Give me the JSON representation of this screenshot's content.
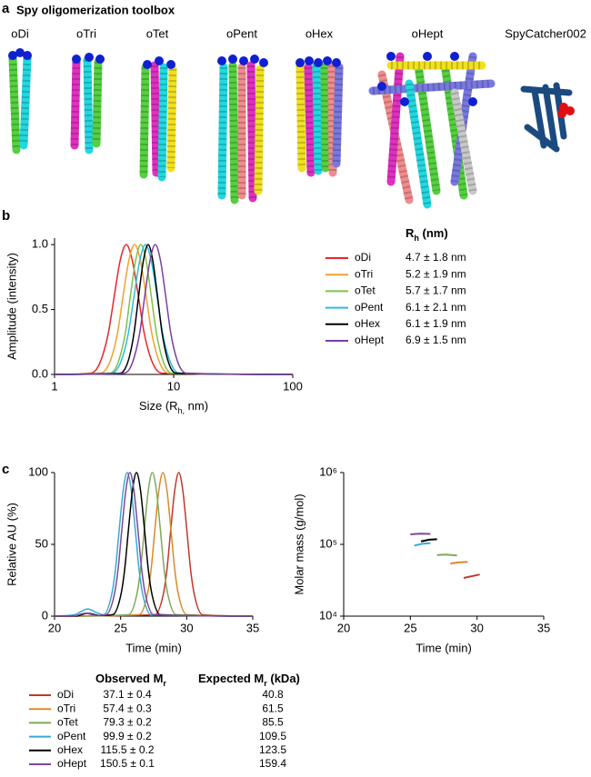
{
  "panel_labels": [
    "a",
    "b",
    "c"
  ],
  "toolbox": {
    "title": "Spy oligomerization toolbox",
    "names": [
      "oDi",
      "oTri",
      "oTet",
      "oPent",
      "oHex",
      "oHept",
      "SpyCatcher002"
    ]
  },
  "chart_data": [
    {
      "type": "line",
      "xlabel": [
        "Size (R",
        "h,",
        " nm)"
      ],
      "ylabel": "Amplitude (intensity)",
      "xscale": "log",
      "xlim": [
        1,
        100
      ],
      "xticks": [
        1,
        10,
        100
      ],
      "ylim": [
        0,
        1.05
      ],
      "yticks": [
        {
          "value": 0,
          "label": "0.0"
        },
        0.5,
        {
          "value": 1,
          "label": "1.0"
        }
      ],
      "series": [
        {
          "name": "oDi",
          "color": "#e8262a",
          "x": [
            1,
            2.01,
            2.25,
            2.52,
            2.83,
            3.18,
            3.56,
            4,
            4.49,
            5.04,
            5.65,
            6.34,
            7.11,
            7.98,
            100
          ],
          "values": [
            0,
            0.01,
            0.04,
            0.14,
            0.32,
            0.61,
            0.88,
            1,
            0.88,
            0.61,
            0.32,
            0.14,
            0.04,
            0.01,
            0
          ]
        },
        {
          "name": "oTri",
          "color": "#f2a12e",
          "x": [
            1,
            2.43,
            2.71,
            3.03,
            3.38,
            3.77,
            4.21,
            4.7,
            5.25,
            5.86,
            6.54,
            7.3,
            8.15,
            9.09,
            100
          ],
          "values": [
            0,
            0.01,
            0.04,
            0.14,
            0.32,
            0.61,
            0.88,
            1,
            0.88,
            0.61,
            0.32,
            0.14,
            0.04,
            0.01,
            0
          ]
        },
        {
          "name": "oTet",
          "color": "#7cc24a",
          "x": [
            1,
            2.91,
            3.22,
            3.55,
            3.93,
            4.34,
            4.8,
            5.3,
            5.86,
            6.47,
            7.16,
            7.91,
            8.74,
            9.66,
            100
          ],
          "values": [
            0,
            0.01,
            0.04,
            0.14,
            0.32,
            0.61,
            0.88,
            1,
            0.88,
            0.61,
            0.32,
            0.14,
            0.04,
            0.01,
            0
          ]
        },
        {
          "name": "oPent",
          "color": "#2dbde0",
          "x": [
            1,
            3.0,
            3.35,
            3.74,
            4.17,
            4.66,
            5.2,
            5.8,
            6.47,
            7.23,
            8.07,
            9.01,
            10.05,
            11.22,
            100
          ],
          "values": [
            0,
            0.01,
            0.04,
            0.14,
            0.32,
            0.61,
            0.88,
            1,
            0.88,
            0.61,
            0.32,
            0.14,
            0.04,
            0.01,
            0
          ]
        },
        {
          "name": "oHex",
          "color": "#000000",
          "x": [
            1,
            3.56,
            3.89,
            4.26,
            4.65,
            5.09,
            5.58,
            6.1,
            6.67,
            7.3,
            7.99,
            8.74,
            9.56,
            10.47,
            100
          ],
          "values": [
            0,
            0.01,
            0.04,
            0.14,
            0.32,
            0.61,
            0.88,
            1,
            0.88,
            0.61,
            0.32,
            0.14,
            0.04,
            0.01,
            0
          ]
        },
        {
          "name": "oHept",
          "color": "#7a3fa0",
          "x": [
            1,
            3.84,
            4.25,
            4.69,
            5.19,
            5.73,
            6.34,
            7,
            7.74,
            8.55,
            9.45,
            10.44,
            11.54,
            12.75,
            100
          ],
          "values": [
            0,
            0.01,
            0.04,
            0.14,
            0.32,
            0.61,
            0.88,
            1,
            0.88,
            0.61,
            0.32,
            0.14,
            0.04,
            0.01,
            0
          ]
        }
      ]
    },
    {
      "type": "line",
      "xlabel": "Time (min)",
      "ylabel": "Relative AU (%)",
      "xlim": [
        20,
        35
      ],
      "xticks": [
        20,
        25,
        30,
        35
      ],
      "ylim": [
        0,
        100
      ],
      "yticks": [
        0,
        50,
        100
      ],
      "series": [
        {
          "name": "oDi",
          "color": "#c0392b",
          "x": [
            20,
            27.6,
            28.2,
            28.5,
            28.8,
            29.1,
            29.4,
            29.7,
            30.0,
            30.3,
            30.6,
            31.2,
            35
          ],
          "values": [
            0,
            1,
            14,
            32,
            61,
            88,
            100,
            88,
            61,
            32,
            14,
            1,
            0
          ]
        },
        {
          "name": "oTri",
          "color": "#d98a2b",
          "x": [
            20,
            26.4,
            27.0,
            27.3,
            27.6,
            27.9,
            28.2,
            28.5,
            28.8,
            29.1,
            29.4,
            30.0,
            35
          ],
          "values": [
            0,
            1,
            14,
            32,
            61,
            88,
            100,
            88,
            61,
            32,
            14,
            1,
            0
          ]
        },
        {
          "name": "oTet",
          "color": "#7fa85a",
          "x": [
            20,
            25.6,
            26.2,
            26.5,
            26.8,
            27.1,
            27.4,
            27.7,
            28.0,
            28.3,
            28.6,
            29.2,
            35
          ],
          "values": [
            0,
            1,
            14,
            32,
            61,
            88,
            100,
            88,
            61,
            32,
            14,
            1,
            0
          ]
        },
        {
          "name": "oPent",
          "color": "#3aa8d8",
          "x": [
            20,
            21.5,
            22.5,
            23.3,
            23.7,
            24.3,
            24.6,
            24.9,
            25.2,
            25.5,
            25.8,
            26.1,
            26.4,
            26.7,
            27.3,
            35
          ],
          "values": [
            0,
            1,
            5,
            2,
            1,
            14,
            32,
            61,
            88,
            100,
            88,
            61,
            32,
            14,
            1,
            0
          ]
        },
        {
          "name": "oHex",
          "color": "#000000",
          "x": [
            20,
            21.6,
            22.5,
            23.4,
            24.4,
            25.0,
            25.3,
            25.6,
            25.9,
            26.2,
            26.5,
            26.8,
            27.1,
            27.4,
            28.0,
            35
          ],
          "values": [
            0,
            0,
            2,
            0.5,
            1,
            14,
            32,
            61,
            88,
            100,
            88,
            61,
            32,
            14,
            1,
            0
          ]
        },
        {
          "name": "oHept",
          "color": "#7b4a9a",
          "x": [
            20,
            21.4,
            22.3,
            23.2,
            23.9,
            24.5,
            24.8,
            25.1,
            25.4,
            25.7,
            26.0,
            26.3,
            26.6,
            26.9,
            27.5,
            35
          ],
          "values": [
            0,
            0,
            2,
            0.5,
            1,
            14,
            32,
            61,
            88,
            100,
            88,
            61,
            32,
            14,
            1,
            0
          ]
        }
      ]
    },
    {
      "type": "line",
      "xlabel": "Time (min)",
      "ylabel": "Molar mass (g/mol)",
      "xlim": [
        20,
        35
      ],
      "xticks": [
        20,
        25,
        30,
        35
      ],
      "yscale": "log",
      "ylim": [
        10000,
        1000000
      ],
      "yticks": [
        {
          "value": 10000,
          "label": "10⁴"
        },
        {
          "value": 100000,
          "label": "10⁵"
        },
        {
          "value": 1000000,
          "label": "10⁶"
        }
      ],
      "series": [
        {
          "color": "#c0392b",
          "x": [
            29.0,
            29.6,
            30.2
          ],
          "values": [
            34000,
            36000,
            38000
          ]
        },
        {
          "color": "#d98a2b",
          "x": [
            28.0,
            28.6,
            29.3
          ],
          "values": [
            54000,
            56000,
            57000
          ]
        },
        {
          "color": "#7fa85a",
          "x": [
            27.0,
            27.7,
            28.5
          ],
          "values": [
            71000,
            72000,
            70000
          ]
        },
        {
          "color": "#3aa8d8",
          "x": [
            25.3,
            25.9,
            26.5
          ],
          "values": [
            96000,
            102000,
            104000
          ]
        },
        {
          "color": "#000000",
          "x": [
            25.8,
            26.4,
            27.0
          ],
          "values": [
            110000,
            116000,
            118000
          ]
        },
        {
          "color": "#7b4a9a",
          "x": [
            25.0,
            25.7,
            26.5
          ],
          "values": [
            138000,
            141000,
            140000
          ]
        }
      ]
    }
  ],
  "rh_table": {
    "header": [
      "R",
      "h",
      " (nm)"
    ],
    "values": [
      "4.7 ± 1.8 nm",
      "5.2 ± 1.9 nm",
      "5.7 ± 1.7 nm",
      "6.1 ± 2.1 nm",
      "6.1 ± 1.9 nm",
      "6.9 ± 1.5 nm"
    ]
  },
  "mr_table": {
    "headers": [
      [
        "Observed M",
        "r"
      ],
      [
        "Expected M",
        "r",
        " (kDa)"
      ]
    ],
    "rows": [
      {
        "observed": "37.1 ± 0.4",
        "expected": 40.8
      },
      {
        "observed": "57.4 ± 0.3",
        "expected": 61.5
      },
      {
        "observed": "79.3 ± 0.2",
        "expected": 85.5
      },
      {
        "observed": "99.9 ± 0.2",
        "expected": 109.5
      },
      {
        "observed": "115.5 ± 0.2",
        "expected": 123.5
      },
      {
        "observed": "150.5 ± 0.1",
        "expected": 159.4
      }
    ]
  }
}
